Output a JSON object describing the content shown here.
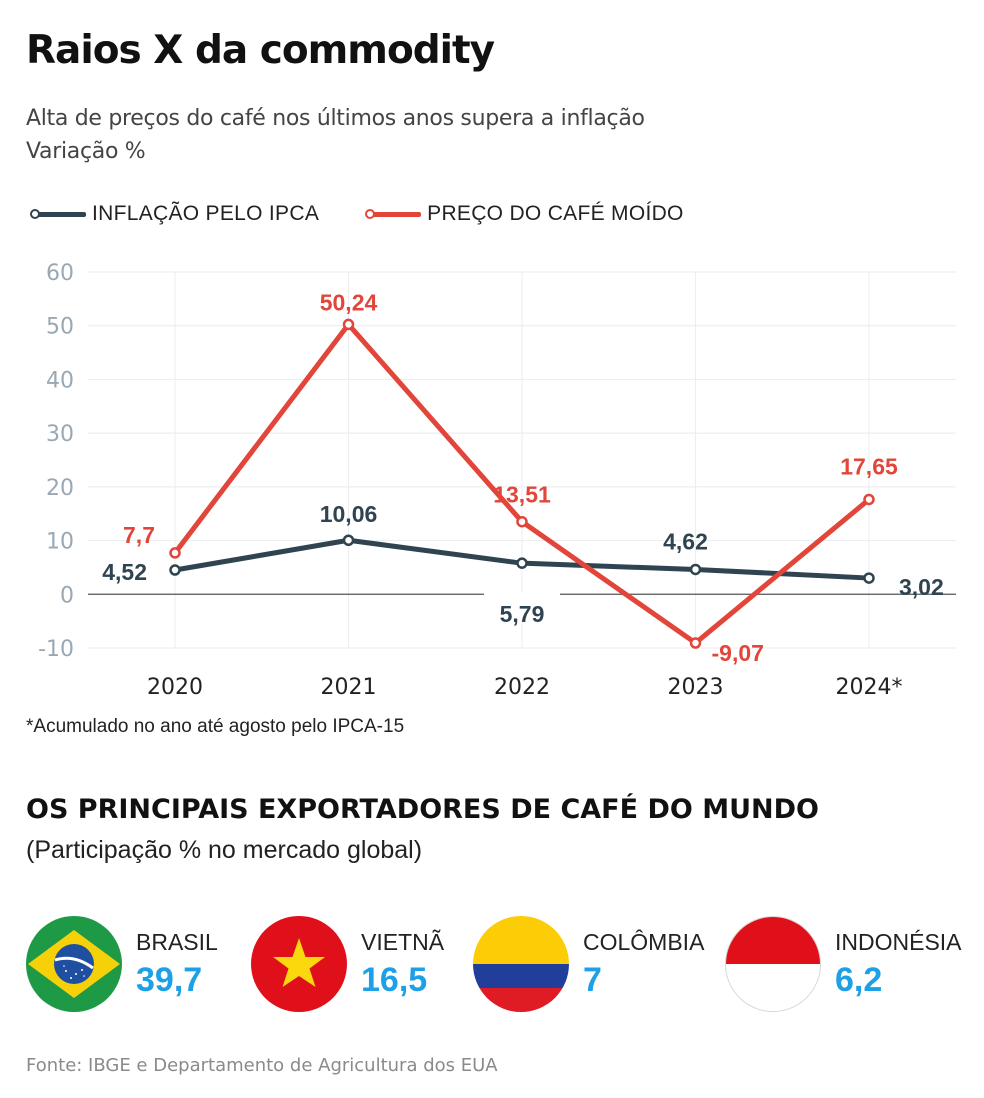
{
  "header": {
    "title": "Raios X da commodity",
    "subtitle_line1": "Alta de preços do café nos últimos anos supera a inflação",
    "subtitle_line2": "Variação %"
  },
  "colors": {
    "ipca": "#2f4450",
    "cafe": "#e2453a",
    "axis_text": "#9aa8b4",
    "grid": "#eceff2",
    "zero_line": "#555555",
    "highlight_value": "#1ea0e6"
  },
  "chart_data": {
    "type": "line",
    "title": "Raios X da commodity",
    "subtitle": "Alta de preços do café nos últimos anos supera a inflação — Variação %",
    "xlabel": "",
    "ylabel": "Variação %",
    "categories": [
      "2020",
      "2021",
      "2022",
      "2023",
      "2024*"
    ],
    "ylim": [
      -10,
      60
    ],
    "yticks": [
      60,
      50,
      40,
      30,
      20,
      10,
      0,
      -10
    ],
    "grid": true,
    "legend_position": "top-left",
    "series": [
      {
        "name": "INFLAÇÃO PELO IPCA",
        "key": "ipca",
        "values": [
          4.52,
          10.06,
          5.79,
          4.62,
          3.02
        ],
        "labels": [
          "4,52",
          "10,06",
          "5,79",
          "4,62",
          "3,02"
        ]
      },
      {
        "name": "PREÇO DO CAFÉ MOÍDO",
        "key": "cafe",
        "values": [
          7.7,
          50.24,
          13.51,
          -9.07,
          17.65
        ],
        "labels": [
          "7,7",
          "50,24",
          "13,51",
          "-9,07",
          "17,65"
        ]
      }
    ]
  },
  "footnote": "*Acumulado no ano até agosto pelo IPCA-15",
  "exporters_section": {
    "title": "OS PRINCIPAIS EXPORTADORES DE CAFÉ DO MUNDO",
    "subtitle": "(Participação % no mercado global)",
    "items": [
      {
        "name": "BRASIL",
        "value": "39,7",
        "flag_icon": "brazil-flag-icon"
      },
      {
        "name": "VIETNÃ",
        "value": "16,5",
        "flag_icon": "vietnam-flag-icon"
      },
      {
        "name": "COLÔMBIA",
        "value": "7",
        "flag_icon": "colombia-flag-icon"
      },
      {
        "name": "INDONÉSIA",
        "value": "6,2",
        "flag_icon": "indonesia-flag-icon"
      }
    ]
  },
  "source": "Fonte: IBGE e Departamento de Agricultura dos EUA"
}
